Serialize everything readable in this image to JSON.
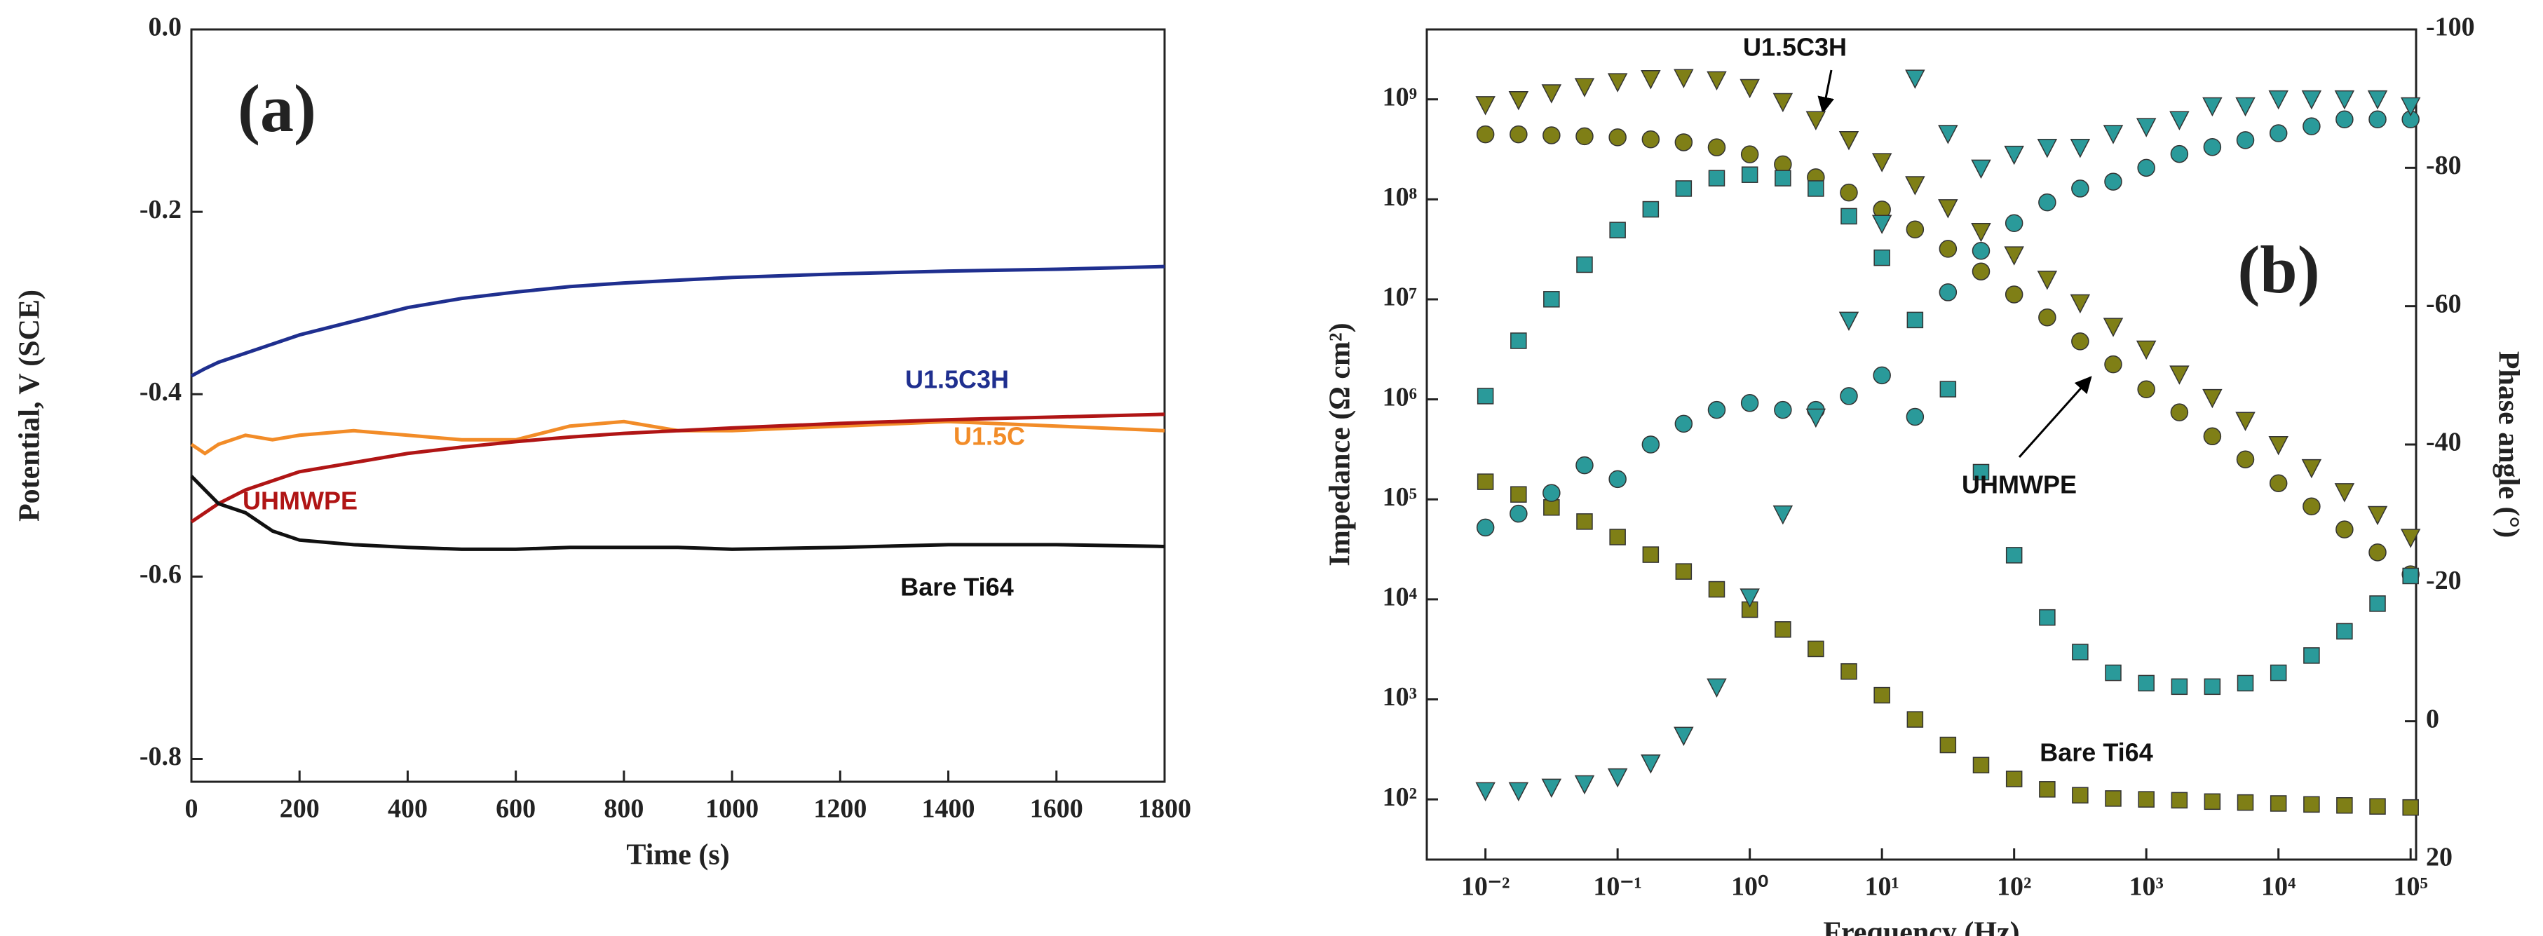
{
  "chart_data": [
    {
      "type": "line",
      "panel_label": "(a)",
      "xlabel": "Time (s)",
      "ylabel": "Potential, V (SCE)",
      "xlim": [
        0,
        1800
      ],
      "ylim": [
        -0.825,
        0
      ],
      "xticks": [
        0,
        200,
        400,
        600,
        800,
        1000,
        1200,
        1400,
        1600,
        1800
      ],
      "yticks": [
        -0.8,
        -0.6,
        -0.4,
        -0.2,
        {
          "value": 0,
          "label": "0.0"
        }
      ],
      "x": [
        0,
        25,
        50,
        100,
        150,
        200,
        300,
        400,
        500,
        600,
        700,
        800,
        900,
        1000,
        1200,
        1400,
        1600,
        1800
      ],
      "series": [
        {
          "name": "U1.5C3H",
          "color": "#1f2f8f",
          "values": [
            -0.38,
            -0.372,
            -0.365,
            -0.355,
            -0.345,
            -0.335,
            -0.32,
            -0.305,
            -0.295,
            -0.288,
            -0.282,
            -0.278,
            -0.275,
            -0.272,
            -0.268,
            -0.265,
            -0.263,
            -0.26
          ]
        },
        {
          "name": "U1.5C",
          "color": "#f28c28",
          "values": [
            -0.455,
            -0.465,
            -0.455,
            -0.445,
            -0.45,
            -0.445,
            -0.44,
            -0.445,
            -0.45,
            -0.45,
            -0.435,
            -0.43,
            -0.44,
            -0.44,
            -0.435,
            -0.43,
            -0.435,
            -0.44
          ]
        },
        {
          "name": "UHMWPE",
          "color": "#b01515",
          "values": [
            -0.54,
            -0.53,
            -0.52,
            -0.505,
            -0.495,
            -0.485,
            -0.475,
            -0.465,
            -0.458,
            -0.452,
            -0.447,
            -0.443,
            -0.44,
            -0.437,
            -0.432,
            -0.428,
            -0.425,
            -0.422
          ]
        },
        {
          "name": "Bare Ti64",
          "color": "#111111",
          "values": [
            -0.49,
            -0.505,
            -0.52,
            -0.53,
            -0.55,
            -0.56,
            -0.565,
            -0.568,
            -0.57,
            -0.57,
            -0.568,
            -0.568,
            -0.568,
            -0.57,
            -0.568,
            -0.565,
            -0.565,
            -0.567
          ]
        }
      ]
    },
    {
      "type": "scatter",
      "panel_label": "(b)",
      "xlabel": "Frequency (Hz)",
      "ylabel": "Impedance (Ω cm²)",
      "y2label": "Phase angle (°)",
      "xlog": true,
      "ylog": true,
      "xlim": [
        0.0036,
        110000
      ],
      "ylim": [
        25,
        5000000000
      ],
      "y2lim": [
        20,
        -100
      ],
      "xticks": [
        {
          "value": 0.01,
          "label": "10⁻²"
        },
        {
          "value": 0.1,
          "label": "10⁻¹"
        },
        {
          "value": 1,
          "label": "10⁰"
        },
        {
          "value": 10,
          "label": "10¹"
        },
        {
          "value": 100,
          "label": "10²"
        },
        {
          "value": 1000,
          "label": "10³"
        },
        {
          "value": 10000,
          "label": "10⁴"
        },
        {
          "value": 100000,
          "label": "10⁵"
        }
      ],
      "yticks": [
        {
          "value": 100,
          "label": "10²"
        },
        {
          "value": 1000,
          "label": "10³"
        },
        {
          "value": 10000,
          "label": "10⁴"
        },
        {
          "value": 100000,
          "label": "10⁵"
        },
        {
          "value": 1000000,
          "label": "10⁶"
        },
        {
          "value": 10000000,
          "label": "10⁷"
        },
        {
          "value": 100000000,
          "label": "10⁸"
        },
        {
          "value": 1000000000,
          "label": "10⁹"
        }
      ],
      "y2ticks": [
        -100,
        -80,
        -60,
        -40,
        -20,
        0,
        20
      ],
      "annotations": [
        "U1.5C3H",
        "UHMWPE",
        "Bare Ti64"
      ],
      "x": [
        0.01,
        0.0178,
        0.0316,
        0.0562,
        0.1,
        0.178,
        0.316,
        0.562,
        1,
        1.78,
        3.16,
        5.62,
        10,
        17.8,
        31.6,
        56.2,
        100,
        178,
        316,
        562,
        1000,
        1780,
        3160,
        5620,
        10000,
        17800,
        31600,
        56200,
        100000
      ],
      "series": [
        {
          "color": "#7f7f16",
          "marker": "square",
          "values": [
            150000,
            112000,
            83000,
            60000,
            42000,
            28000,
            19000,
            12600,
            7900,
            5000,
            3200,
            1900,
            1100,
            630,
            350,
            220,
            160,
            126,
            110,
            102,
            100,
            98,
            95,
            93,
            91,
            89,
            87,
            85,
            83
          ]
        },
        {
          "color": "#7f7f16",
          "marker": "triangle-down",
          "values": [
            890000000,
            1000000000,
            1170000000,
            1350000000,
            1510000000,
            1620000000,
            1660000000,
            1580000000,
            1320000000,
            955000000,
            631000000,
            398000000,
            240000000,
            141000000,
            83000000,
            48000000,
            28000000,
            16000000,
            9300000,
            5400000,
            3200000,
            1800000,
            1050000,
            620000,
            355000,
            209000,
            120000,
            71000,
            42000
          ]
        },
        {
          "color": "#7f7f16",
          "marker": "circle",
          "values": [
            447000000,
            447000000,
            437000000,
            427000000,
            417000000,
            398000000,
            372000000,
            331000000,
            282000000,
            224000000,
            166000000,
            117000000,
            79000000,
            50000000,
            32000000,
            19000000,
            11200000,
            6600000,
            3800000,
            2240000,
            1260000,
            741000,
            427000,
            251000,
            145000,
            85000,
            50000,
            29500,
            17800
          ]
        },
        {
          "color": "#2a9a9a",
          "marker": "square",
          "axis": "y2",
          "values": [
            -47,
            -55,
            -61,
            -66,
            -71,
            -74,
            -77,
            -78.5,
            -79,
            -78.5,
            -77,
            -73,
            -67,
            -58,
            -48,
            -36,
            -24,
            -15,
            -10,
            -7,
            -5.5,
            -5,
            -5,
            -5.5,
            -7,
            -9.5,
            -13,
            -17,
            -21
          ]
        },
        {
          "color": "#2a9a9a",
          "marker": "circle",
          "axis": "y2",
          "values": [
            -28,
            -30,
            -33,
            -37,
            -35,
            -40,
            -43,
            -45,
            -46,
            -45,
            -45,
            -47,
            -50,
            -44,
            -62,
            -68,
            -72,
            -75,
            -77,
            -78,
            -80,
            -82,
            -83,
            -84,
            -85,
            -86,
            -87,
            -87,
            -87
          ]
        },
        {
          "color": "#2a9a9a",
          "marker": "triangle-down",
          "axis": "y2",
          "values": [
            10,
            10,
            9.5,
            9,
            8,
            6,
            2,
            -5,
            -18,
            -30,
            -44,
            -58,
            -72,
            -93,
            -85,
            -80,
            -82,
            -83,
            -83,
            -85,
            -86,
            -87,
            -89,
            -89,
            -90,
            -90,
            -90,
            -90,
            -89
          ]
        }
      ]
    }
  ]
}
